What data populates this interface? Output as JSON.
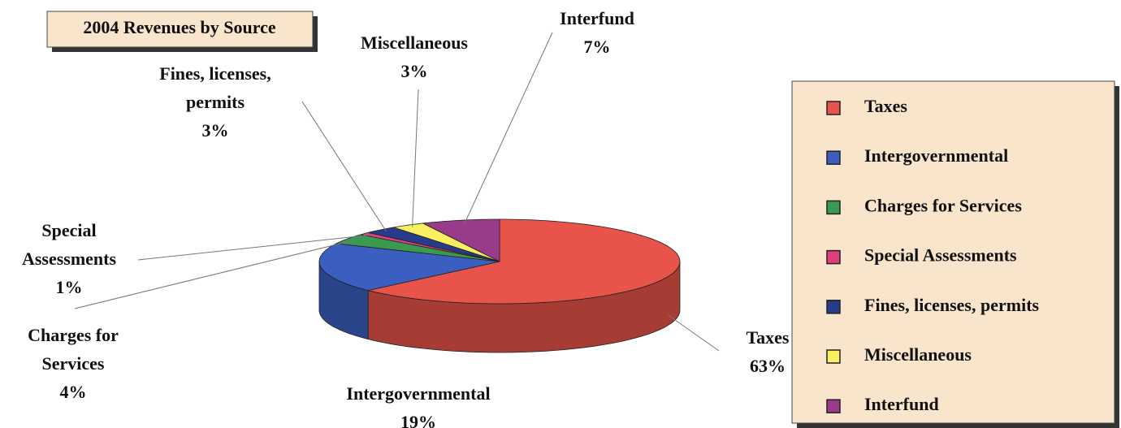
{
  "chart_data": {
    "type": "pie",
    "title": "2004 Revenues by Source",
    "categories": [
      "Taxes",
      "Intergovernmental",
      "Charges for Services",
      "Special Assessments",
      "Fines, licenses, permits",
      "Miscellaneous",
      "Interfund"
    ],
    "values": [
      63,
      19,
      4,
      1,
      3,
      3,
      7
    ],
    "value_labels": [
      "63%",
      "19%",
      "4%",
      "1%",
      "3%",
      "3%",
      "7%"
    ],
    "colors": [
      "#e8534a",
      "#3a5fc0",
      "#3a9a50",
      "#e0407a",
      "#283a8a",
      "#f8f060",
      "#9a3a8a"
    ],
    "legend": "right"
  }
}
